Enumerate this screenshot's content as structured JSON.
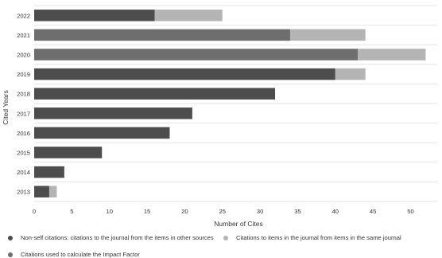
{
  "chart_data": {
    "type": "bar",
    "orientation": "horizontal",
    "stacked": true,
    "ylabel": "Cited Years",
    "xlabel": "Number of Cites",
    "xlim": [
      0,
      55
    ],
    "xticks": [
      0,
      5,
      10,
      15,
      20,
      25,
      30,
      35,
      40,
      45,
      50
    ],
    "grid": true,
    "legend_position": "bottom",
    "categories": [
      "2022",
      "2021",
      "2020",
      "2019",
      "2018",
      "2017",
      "2016",
      "2015",
      "2014",
      "2013"
    ],
    "category_styles": [
      "non-self",
      "if",
      "if",
      "non-self",
      "non-self",
      "non-self",
      "non-self",
      "non-self",
      "non-self",
      "non-self"
    ],
    "series": [
      {
        "name": "Non-self citations: citations to the journal from the items in other sources",
        "color": "#4d4d4d",
        "values": [
          16,
          0,
          0,
          40,
          32,
          21,
          18,
          9,
          4,
          2
        ]
      },
      {
        "name": "Citations used to calculate the Impact Factor",
        "color": "#6e6e6e",
        "values": [
          0,
          34,
          43,
          0,
          0,
          0,
          0,
          0,
          0,
          0
        ]
      },
      {
        "name": "Citations to items in the journal from items in the same journal",
        "color": "#b4b4b4",
        "values": [
          9,
          10,
          9,
          4,
          0,
          0,
          0,
          0,
          0,
          1
        ]
      }
    ]
  }
}
